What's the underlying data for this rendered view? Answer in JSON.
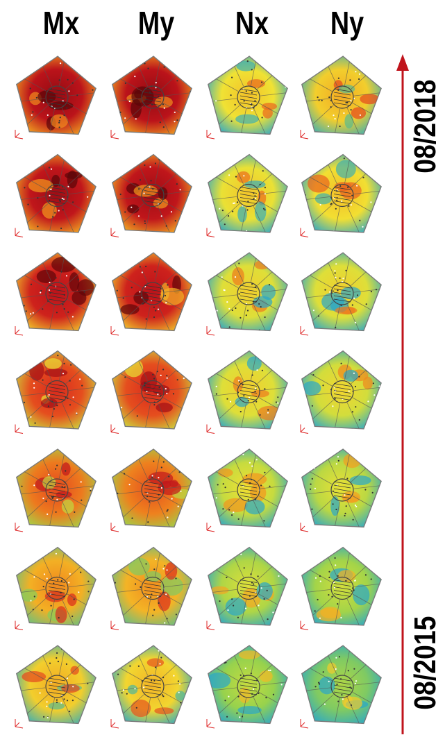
{
  "columns": [
    "Mx",
    "My",
    "Nx",
    "Ny"
  ],
  "rows": 7,
  "timeline": {
    "start_label": "08/2015",
    "end_label": "08/2018",
    "arrow_color": "#c0141c"
  },
  "colormap": [
    "#2aa7c9",
    "#8fd14f",
    "#f2e233",
    "#f39a1e",
    "#e0301e",
    "#b8101a",
    "#5a0508"
  ],
  "intensity": {
    "Mx": [
      0.38,
      0.45,
      0.55,
      0.62,
      0.74,
      0.8,
      0.82
    ],
    "My": [
      0.36,
      0.44,
      0.54,
      0.62,
      0.74,
      0.8,
      0.82
    ],
    "Nx": [
      0.18,
      0.22,
      0.26,
      0.3,
      0.3,
      0.32,
      0.33
    ],
    "Ny": [
      0.14,
      0.2,
      0.24,
      0.28,
      0.3,
      0.34,
      0.38
    ]
  }
}
